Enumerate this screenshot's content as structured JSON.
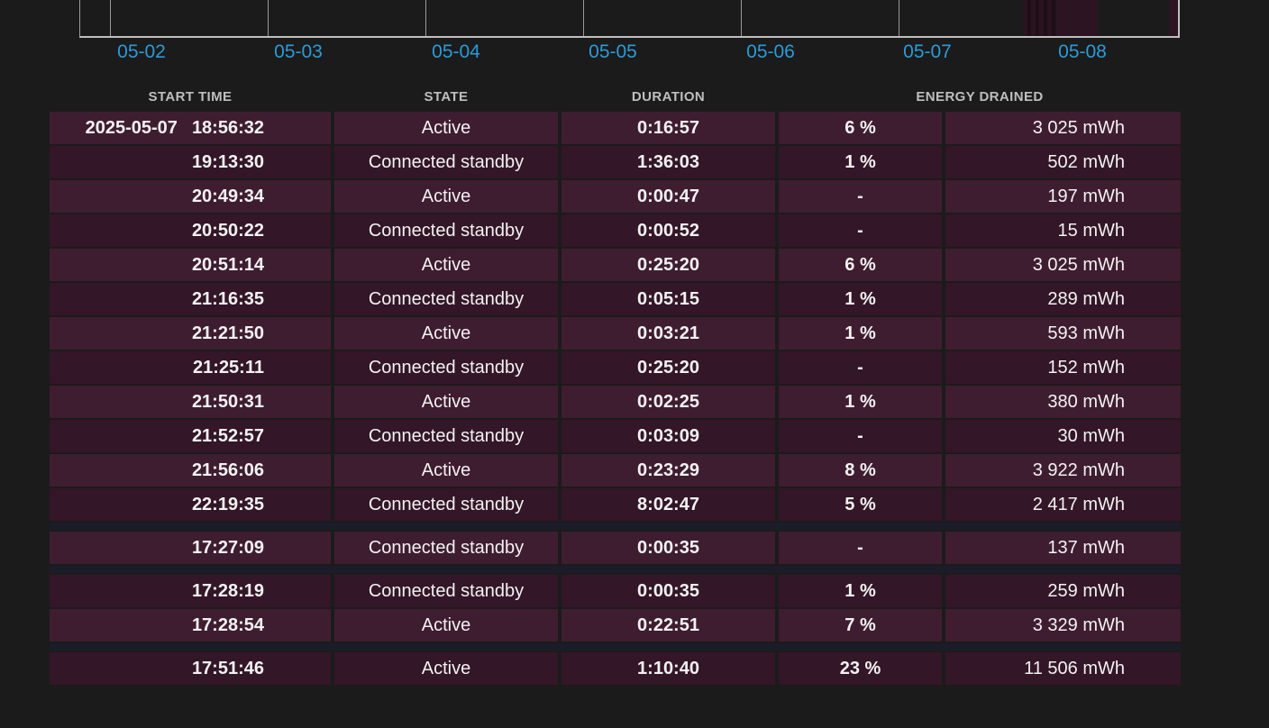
{
  "chart": {
    "axis_labels": [
      "05-02",
      "05-03",
      "05-04",
      "05-05",
      "05-06",
      "05-07",
      "05-08"
    ],
    "colors": {
      "axis_label": "#2B9BD8",
      "gridline": "#9A9A9A",
      "axis_line": "#C0C0C0",
      "usage_fill": "#2C1423"
    }
  },
  "table": {
    "headers": {
      "start_time": "START TIME",
      "state": "STATE",
      "duration": "DURATION",
      "energy_drained": "ENERGY DRAINED"
    },
    "colors": {
      "background": "#1B1B1B",
      "row_light": "#3F1D30",
      "row_dark": "#331627",
      "separator": "#1A1C29",
      "text": "#F2F2F2",
      "header_text": "#BFBFBF"
    },
    "rows": [
      {
        "date": "2025-05-07",
        "time": "18:56:32",
        "state": "Active",
        "duration": "0:16:57",
        "percent": "6 %",
        "energy": "3 025 mWh"
      },
      {
        "date": "",
        "time": "19:13:30",
        "state": "Connected standby",
        "duration": "1:36:03",
        "percent": "1 %",
        "energy": "502 mWh"
      },
      {
        "date": "",
        "time": "20:49:34",
        "state": "Active",
        "duration": "0:00:47",
        "percent": "-",
        "energy": "197 mWh"
      },
      {
        "date": "",
        "time": "20:50:22",
        "state": "Connected standby",
        "duration": "0:00:52",
        "percent": "-",
        "energy": "15 mWh"
      },
      {
        "date": "",
        "time": "20:51:14",
        "state": "Active",
        "duration": "0:25:20",
        "percent": "6 %",
        "energy": "3 025 mWh"
      },
      {
        "date": "",
        "time": "21:16:35",
        "state": "Connected standby",
        "duration": "0:05:15",
        "percent": "1 %",
        "energy": "289 mWh"
      },
      {
        "date": "",
        "time": "21:21:50",
        "state": "Active",
        "duration": "0:03:21",
        "percent": "1 %",
        "energy": "593 mWh"
      },
      {
        "date": "",
        "time": "21:25:11",
        "state": "Connected standby",
        "duration": "0:25:20",
        "percent": "-",
        "energy": "152 mWh"
      },
      {
        "date": "",
        "time": "21:50:31",
        "state": "Active",
        "duration": "0:02:25",
        "percent": "1 %",
        "energy": "380 mWh"
      },
      {
        "date": "",
        "time": "21:52:57",
        "state": "Connected standby",
        "duration": "0:03:09",
        "percent": "-",
        "energy": "30 mWh"
      },
      {
        "date": "",
        "time": "21:56:06",
        "state": "Active",
        "duration": "0:23:29",
        "percent": "8 %",
        "energy": "3 922 mWh"
      },
      {
        "date": "",
        "time": "22:19:35",
        "state": "Connected standby",
        "duration": "8:02:47",
        "percent": "5 %",
        "energy": "2 417 mWh"
      },
      {
        "date": "",
        "time": "17:27:09",
        "state": "Connected standby",
        "duration": "0:00:35",
        "percent": "-",
        "energy": "137 mWh",
        "separator_before": true
      },
      {
        "date": "",
        "time": "17:28:19",
        "state": "Connected standby",
        "duration": "0:00:35",
        "percent": "1 %",
        "energy": "259 mWh",
        "separator_before": true
      },
      {
        "date": "",
        "time": "17:28:54",
        "state": "Active",
        "duration": "0:22:51",
        "percent": "7 %",
        "energy": "3 329 mWh"
      },
      {
        "date": "",
        "time": "17:51:46",
        "state": "Active",
        "duration": "1:10:40",
        "percent": "23 %",
        "energy": "11 506 mWh",
        "separator_before": true
      }
    ]
  }
}
